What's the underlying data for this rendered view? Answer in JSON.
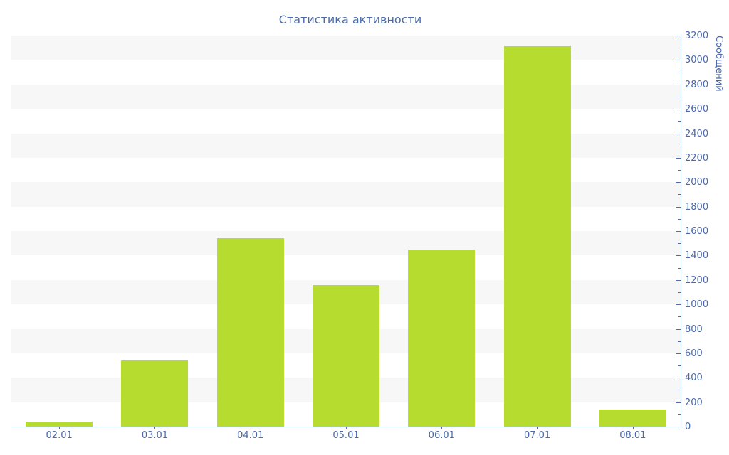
{
  "chart_data": {
    "type": "bar",
    "title": "Статистика активности",
    "categories": [
      "02.01",
      "03.01",
      "04.01",
      "05.01",
      "06.01",
      "07.01",
      "08.01"
    ],
    "values": [
      40,
      540,
      1540,
      1160,
      1450,
      3110,
      140
    ],
    "series_name": "Сообщений",
    "xlabel": "",
    "ylabel": "Сообщений",
    "ylim": [
      0,
      3200
    ],
    "y_tick_interval": 200,
    "y_minor_tick_interval": 100,
    "y_axis_side": "right",
    "legend": "none",
    "grid": "alternating-horizontal-bands",
    "colors": {
      "bar": "#b7dc30",
      "band": "#f7f7f7",
      "axis_line": "#5569ae",
      "label_text": "#4a68ac",
      "title_text": "#4a6aad",
      "background": "#ffffff"
    }
  }
}
